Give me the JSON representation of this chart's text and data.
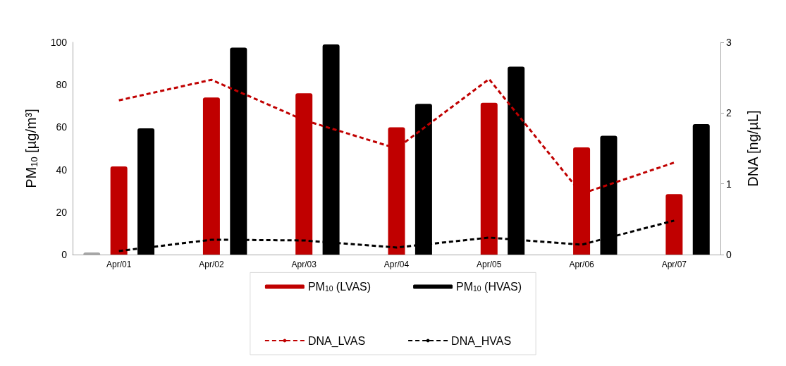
{
  "chart_data": {
    "type": "bar",
    "categories": [
      "Apr/01",
      "Apr/02",
      "Apr/03",
      "Apr/04",
      "Apr/05",
      "Apr/06",
      "Apr/07"
    ],
    "series": [
      {
        "color": "#a6a6a6",
        "values": [
          1,
          null,
          null,
          null,
          null,
          null,
          null
        ]
      },
      {
        "name": "PM$_{10}$ (LVAS)",
        "color": "#c00000",
        "values": [
          41.5,
          74,
          76,
          60,
          71.5,
          50.5,
          28.5
        ]
      },
      {
        "name": "PM$_{10}$ (HVAS)",
        "color": "#000000",
        "values": [
          59.5,
          97.5,
          99,
          71,
          88.5,
          56,
          61.5
        ]
      },
      {
        "name": "DNA_LVAS",
        "type": "line",
        "axis": "y2",
        "line_style": "dashed",
        "color": "#c00000",
        "values": [
          2.18,
          2.47,
          1.9,
          1.5,
          2.48,
          0.86,
          1.3
        ]
      },
      {
        "name": "DNA_HVAS",
        "type": "line",
        "axis": "y2",
        "line_style": "dashed",
        "color": "#000000",
        "values": [
          0.05,
          0.21,
          0.2,
          0.1,
          0.24,
          0.14,
          0.48
        ]
      }
    ],
    "ylabel": "PM$_{10}$ [µg/m³]",
    "y2label": "DNA [ng/µL]",
    "ylim": [
      0,
      100
    ],
    "yticks": [
      0,
      20,
      40,
      60,
      80,
      100
    ],
    "y2lim": [
      0,
      3
    ],
    "y2ticks": [
      0,
      1,
      2,
      3
    ],
    "grid": false,
    "legend": "bottom",
    "marker": "none"
  }
}
